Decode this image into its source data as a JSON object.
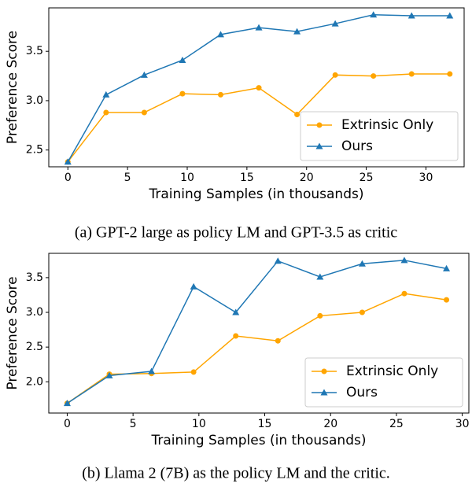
{
  "chart_data": [
    {
      "type": "line",
      "xlabel": "Training Samples (in thousands)",
      "ylabel": "Preference Score",
      "caption": "(a) GPT-2 large as policy LM and GPT-3.5 as critic",
      "x": [
        0,
        3.2,
        6.4,
        9.6,
        12.8,
        16,
        19.2,
        22.4,
        25.6,
        28.8,
        32
      ],
      "series": [
        {
          "name": "Extrinsic Only",
          "color": "#ffa500",
          "marker": "o",
          "values": [
            2.38,
            2.88,
            2.88,
            3.07,
            3.06,
            3.13,
            2.86,
            3.26,
            3.25,
            3.27,
            3.27
          ]
        },
        {
          "name": "Ours",
          "color": "#1f77b4",
          "marker": "^",
          "values": [
            2.38,
            3.06,
            3.26,
            3.41,
            3.67,
            3.74,
            3.7,
            3.78,
            3.87,
            3.86,
            3.86
          ]
        }
      ],
      "xlim": [
        -1.6,
        33.2
      ],
      "ylim": [
        2.33,
        3.94
      ],
      "xticks": [
        0,
        5,
        10,
        15,
        20,
        25,
        30
      ],
      "yticks": [
        2.5,
        {
          "value": 3,
          "label": "3.0"
        },
        3.5
      ],
      "legend": "lower right"
    },
    {
      "type": "line",
      "xlabel": "Training Samples (in thousands)",
      "ylabel": "Preference Score",
      "caption": "(b) Llama 2 (7B) as the policy LM and the critic.",
      "x": [
        0,
        3.2,
        6.4,
        9.6,
        12.8,
        16,
        19.2,
        22.4,
        25.6,
        28.8
      ],
      "series": [
        {
          "name": "Extrinsic Only",
          "color": "#ffa500",
          "marker": "o",
          "values": [
            1.69,
            2.11,
            2.12,
            2.14,
            2.66,
            2.59,
            2.95,
            3.0,
            3.27,
            3.18
          ]
        },
        {
          "name": "Ours",
          "color": "#1f77b4",
          "marker": "^",
          "values": [
            1.69,
            2.09,
            2.15,
            3.37,
            3.0,
            3.74,
            3.51,
            3.7,
            3.75,
            3.63
          ]
        }
      ],
      "xlim": [
        -1.4,
        30.5
      ],
      "ylim": [
        1.55,
        3.85
      ],
      "xticks": [
        0,
        5,
        10,
        15,
        20,
        25,
        30
      ],
      "yticks": [
        {
          "value": 2,
          "label": "2.0"
        },
        2.5,
        {
          "value": 3,
          "label": "3.0"
        },
        3.5
      ],
      "legend": "lower right"
    }
  ]
}
